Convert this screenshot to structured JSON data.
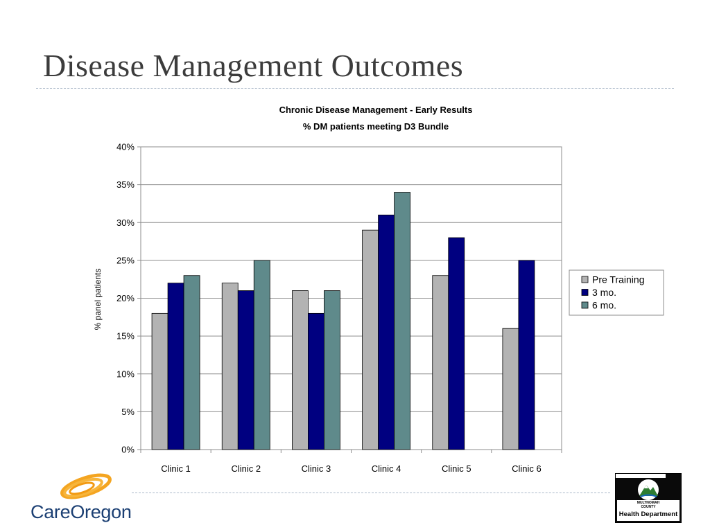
{
  "slide": {
    "title": "Disease Management Outcomes"
  },
  "logos": {
    "careoregon": "CareOregon",
    "county_lines": [
      "MULTNOMAH",
      "COUNTY"
    ],
    "health_department": "Health Department"
  },
  "chart_data": {
    "type": "bar",
    "title": "Chronic Disease Management - Early Results",
    "subtitle": "% DM patients meeting D3 Bundle",
    "xlabel": "",
    "ylabel": "% panel patients",
    "categories": [
      "Clinic 1",
      "Clinic 2",
      "Clinic 3",
      "Clinic 4",
      "Clinic 5",
      "Clinic 6"
    ],
    "series": [
      {
        "name": "Pre Training",
        "values": [
          18,
          22,
          21,
          29,
          23,
          16
        ],
        "color": "#b3b3b3"
      },
      {
        "name": "3 mo.",
        "values": [
          22,
          21,
          18,
          31,
          28,
          25
        ],
        "color": "#000080"
      },
      {
        "name": "6 mo.",
        "values": [
          23,
          25,
          21,
          34,
          null,
          null
        ],
        "color": "#5f8a8b"
      }
    ],
    "ylim": [
      0,
      40
    ],
    "y_ticks": [
      0,
      5,
      10,
      15,
      20,
      25,
      30,
      35,
      40
    ],
    "y_tick_format": "{v}%",
    "grid": true,
    "legend_position": "right"
  }
}
